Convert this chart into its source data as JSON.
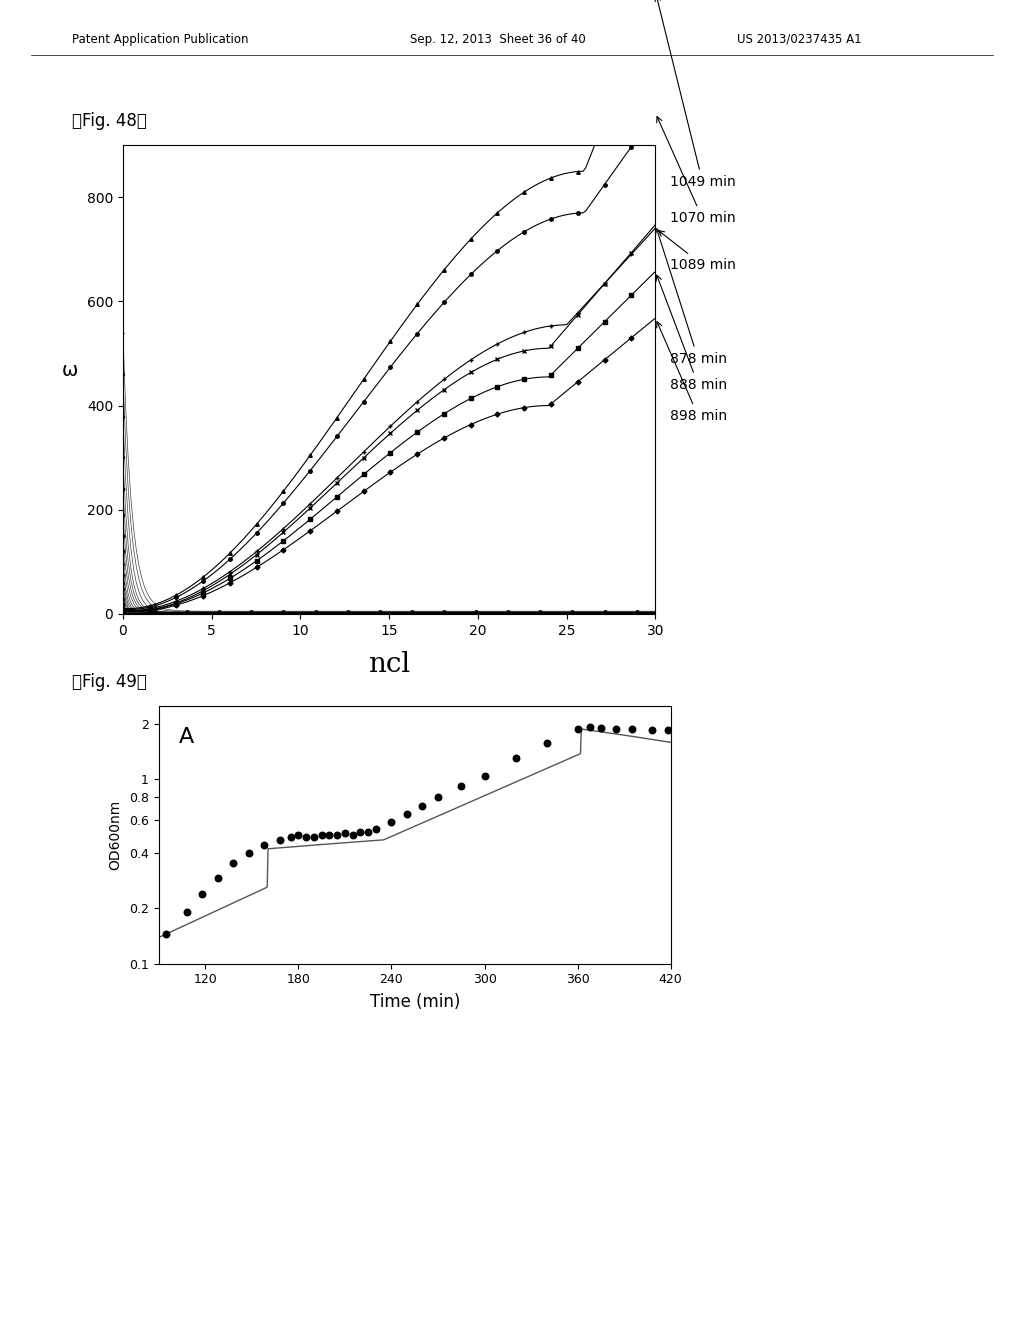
{
  "fig48_title": "』Fig. 48】",
  "fig49_title": "』Fig. 49】",
  "header_left": "Patent Application Publication",
  "header_mid": "Sep. 12, 2013  Sheet 36 of 40",
  "header_right": "US 2013/0237435 A1",
  "fig48": {
    "xlabel": "ncl",
    "ylabel": "ω",
    "xlim": [
      0,
      30
    ],
    "ylim": [
      0,
      900
    ],
    "xticks": [
      0,
      5,
      10,
      15,
      20,
      25,
      30
    ],
    "yticks": [
      0,
      200,
      400,
      600,
      800
    ],
    "labels": [
      "1049 min",
      "1070 min",
      "1089 min",
      "878 min",
      "888 min",
      "898 min"
    ]
  },
  "fig49": {
    "xlabel": "Time (min)",
    "ylabel": "OD600nm",
    "xlim": [
      90,
      420
    ],
    "ylim_log": [
      0.1,
      2.5
    ],
    "xticks": [
      120,
      180,
      240,
      300,
      360,
      420
    ],
    "yticks": [
      0.1,
      0.2,
      0.4,
      0.6,
      0.8,
      1,
      2
    ],
    "ytick_labels": [
      "0.1",
      "0.2",
      "0.4",
      "0.6",
      "0.8",
      "1",
      "2"
    ],
    "annotation": "A",
    "data_x": [
      95,
      108,
      118,
      128,
      138,
      148,
      158,
      168,
      175,
      180,
      185,
      190,
      195,
      200,
      205,
      210,
      215,
      220,
      225,
      230,
      240,
      250,
      260,
      270,
      285,
      300,
      320,
      340,
      360,
      368,
      375,
      385,
      395,
      408,
      418
    ],
    "data_y": [
      0.145,
      0.19,
      0.24,
      0.29,
      0.35,
      0.4,
      0.44,
      0.47,
      0.49,
      0.5,
      0.49,
      0.49,
      0.5,
      0.5,
      0.5,
      0.51,
      0.5,
      0.52,
      0.52,
      0.54,
      0.59,
      0.65,
      0.72,
      0.8,
      0.92,
      1.05,
      1.3,
      1.58,
      1.88,
      1.92,
      1.9,
      1.88,
      1.87,
      1.86,
      1.85
    ]
  }
}
